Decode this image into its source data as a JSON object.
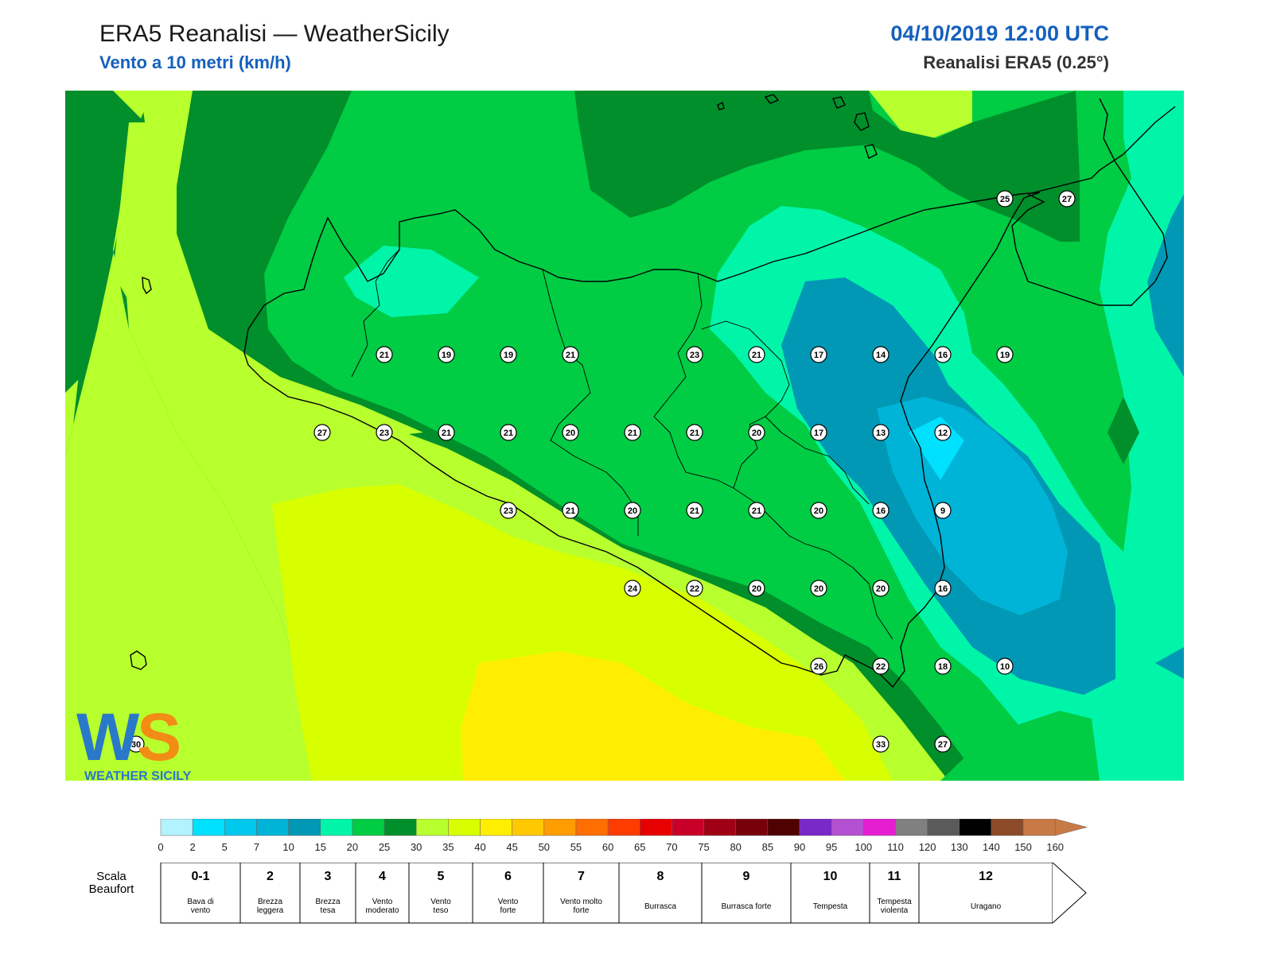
{
  "header": {
    "title": "ERA5 Reanalisi — WeatherSicily",
    "subtitle": "Vento a 10 metri (km/h)",
    "datetime": "04/10/2019 12:00 UTC",
    "source": "Reanalisi ERA5 (0.25°)"
  },
  "logo": {
    "letters": "WS",
    "text": "WEATHER SICILY"
  },
  "map": {
    "grid_lon": [
      12.0,
      12.5,
      13.0,
      13.5,
      14.0,
      14.5,
      15.0,
      15.5,
      16.0
    ],
    "grid_lat": [
      38.5,
      38.0,
      37.5,
      37.0,
      36.5,
      36.0
    ],
    "stations": [
      {
        "v": "21",
        "i": 4,
        "j": 3
      },
      {
        "v": "19",
        "i": 5,
        "j": 3
      },
      {
        "v": "19",
        "i": 6,
        "j": 3
      },
      {
        "v": "21",
        "i": 7,
        "j": 3
      },
      {
        "v": "23",
        "i": 9,
        "j": 3
      },
      {
        "v": "21",
        "i": 10,
        "j": 3
      },
      {
        "v": "17",
        "i": 11,
        "j": 3
      },
      {
        "v": "14",
        "i": 12,
        "j": 3
      },
      {
        "v": "16",
        "i": 13,
        "j": 3
      },
      {
        "v": "19",
        "i": 14,
        "j": 3
      },
      {
        "v": "27",
        "i": 3,
        "j": 4
      },
      {
        "v": "23",
        "i": 4,
        "j": 4
      },
      {
        "v": "21",
        "i": 5,
        "j": 4
      },
      {
        "v": "21",
        "i": 6,
        "j": 4
      },
      {
        "v": "20",
        "i": 7,
        "j": 4
      },
      {
        "v": "21",
        "i": 8,
        "j": 4
      },
      {
        "v": "21",
        "i": 9,
        "j": 4
      },
      {
        "v": "20",
        "i": 10,
        "j": 4
      },
      {
        "v": "17",
        "i": 11,
        "j": 4
      },
      {
        "v": "13",
        "i": 12,
        "j": 4
      },
      {
        "v": "12",
        "i": 13,
        "j": 4
      },
      {
        "v": "23",
        "i": 6,
        "j": 5
      },
      {
        "v": "21",
        "i": 7,
        "j": 5
      },
      {
        "v": "20",
        "i": 8,
        "j": 5
      },
      {
        "v": "21",
        "i": 9,
        "j": 5
      },
      {
        "v": "21",
        "i": 10,
        "j": 5
      },
      {
        "v": "20",
        "i": 11,
        "j": 5
      },
      {
        "v": "16",
        "i": 12,
        "j": 5
      },
      {
        "v": "9",
        "i": 13,
        "j": 5
      },
      {
        "v": "24",
        "i": 8,
        "j": 6
      },
      {
        "v": "22",
        "i": 9,
        "j": 6
      },
      {
        "v": "20",
        "i": 10,
        "j": 6
      },
      {
        "v": "20",
        "i": 11,
        "j": 6
      },
      {
        "v": "20",
        "i": 12,
        "j": 6
      },
      {
        "v": "16",
        "i": 13,
        "j": 6
      },
      {
        "v": "26",
        "i": 11,
        "j": 7
      },
      {
        "v": "22",
        "i": 12,
        "j": 7
      },
      {
        "v": "18",
        "i": 13,
        "j": 7
      },
      {
        "v": "10",
        "i": 14,
        "j": 7
      },
      {
        "v": "33",
        "i": 12,
        "j": 8
      },
      {
        "v": "27",
        "i": 13,
        "j": 8
      },
      {
        "v": "25",
        "i": 14,
        "j": 1
      },
      {
        "v": "27",
        "i": 15,
        "j": 1
      },
      {
        "v": "30",
        "i": 0,
        "j": 8
      }
    ]
  },
  "colorbar": {
    "unit": "km/h",
    "ticks": [
      "0",
      "2",
      "5",
      "7",
      "10",
      "15",
      "20",
      "25",
      "30",
      "35",
      "40",
      "45",
      "50",
      "55",
      "60",
      "65",
      "70",
      "75",
      "80",
      "85",
      "90",
      "95",
      "100",
      "110",
      "120",
      "130",
      "140",
      "150",
      "160"
    ],
    "colors": [
      "#b3f2ff",
      "#00e0ff",
      "#00c8ec",
      "#00b4d8",
      "#0098b4",
      "#00f5a8",
      "#00cc44",
      "#008f2a",
      "#b8ff2e",
      "#d8ff00",
      "#ffee00",
      "#ffc800",
      "#ff9c00",
      "#ff6e00",
      "#ff3c00",
      "#e60000",
      "#c80028",
      "#a00014",
      "#78000a",
      "#500000",
      "#7a28c8",
      "#b450d2",
      "#e61ed2",
      "#808080",
      "#5a5a5a",
      "#000000",
      "#8c4a28",
      "#c87a46"
    ]
  },
  "beaufort": {
    "label": "Scala Beaufort",
    "classes": [
      {
        "num": "0-1",
        "desc": "Bava di vento"
      },
      {
        "num": "2",
        "desc": "Brezza leggera"
      },
      {
        "num": "3",
        "desc": "Brezza tesa"
      },
      {
        "num": "4",
        "desc": "Vento moderato"
      },
      {
        "num": "5",
        "desc": "Vento teso"
      },
      {
        "num": "6",
        "desc": "Vento forte"
      },
      {
        "num": "7",
        "desc": "Vento molto forte"
      },
      {
        "num": "8",
        "desc": "Burrasca"
      },
      {
        "num": "9",
        "desc": "Burrasca forte"
      },
      {
        "num": "10",
        "desc": "Tempesta"
      },
      {
        "num": "11",
        "desc": "Tempesta violenta"
      },
      {
        "num": "12",
        "desc": "Uragano"
      }
    ]
  }
}
